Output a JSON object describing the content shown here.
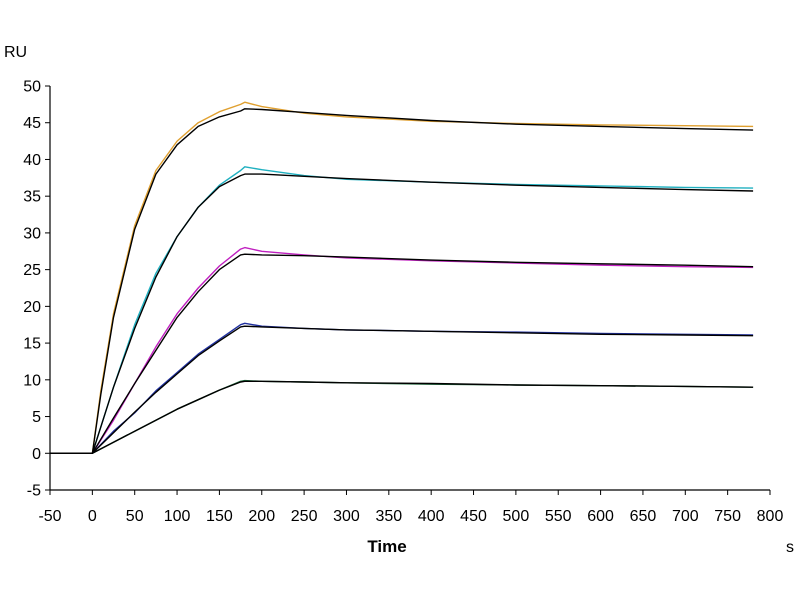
{
  "chart_data": {
    "type": "line",
    "title": "",
    "xlabel": "Time",
    "ylabel": "RU",
    "x_unit": "s",
    "xlim": [
      -50,
      800
    ],
    "ylim": [
      -5,
      50
    ],
    "x_ticks": [
      -50,
      0,
      50,
      100,
      150,
      200,
      250,
      300,
      350,
      400,
      450,
      500,
      550,
      600,
      650,
      700,
      750,
      800
    ],
    "y_ticks": [
      -5,
      0,
      5,
      10,
      15,
      20,
      25,
      30,
      35,
      40,
      45,
      50
    ],
    "grid": false,
    "legend": "none",
    "series": [
      {
        "color": "#E0A030",
        "fit_color": "#000000",
        "x": [
          -50,
          0,
          10,
          25,
          50,
          75,
          100,
          125,
          150,
          175,
          180,
          200,
          250,
          300,
          400,
          500,
          600,
          700,
          780
        ],
        "y": [
          0,
          0,
          8.5,
          19,
          31,
          38.5,
          42.5,
          45,
          46.5,
          47.5,
          47.8,
          47.2,
          46.3,
          45.8,
          45.2,
          44.9,
          44.7,
          44.6,
          44.5
        ],
        "fit": [
          0,
          0,
          8,
          18.5,
          30.5,
          38,
          42,
          44.5,
          45.8,
          46.6,
          46.9,
          46.8,
          46.4,
          46.0,
          45.3,
          44.8,
          44.5,
          44.2,
          44.0
        ]
      },
      {
        "color": "#20B0C0",
        "fit_color": "#000000",
        "x": [
          -50,
          0,
          25,
          50,
          75,
          100,
          125,
          150,
          175,
          180,
          200,
          250,
          300,
          400,
          500,
          600,
          700,
          780
        ],
        "y": [
          0,
          0,
          9,
          17.5,
          24.5,
          29.5,
          33.5,
          36.5,
          38.5,
          39.0,
          38.6,
          37.8,
          37.3,
          36.9,
          36.6,
          36.4,
          36.2,
          36.1
        ],
        "fit": [
          0,
          0,
          9,
          17,
          24,
          29.5,
          33.5,
          36.3,
          37.8,
          38.0,
          38.0,
          37.7,
          37.4,
          36.9,
          36.5,
          36.2,
          35.9,
          35.7
        ]
      },
      {
        "color": "#C020C0",
        "fit_color": "#000000",
        "x": [
          -50,
          0,
          25,
          50,
          75,
          100,
          125,
          150,
          175,
          180,
          200,
          250,
          300,
          400,
          500,
          600,
          700,
          780
        ],
        "y": [
          0,
          0,
          4.5,
          9.5,
          14.5,
          19,
          22.5,
          25.5,
          27.8,
          28.0,
          27.5,
          27.0,
          26.6,
          26.2,
          25.9,
          25.6,
          25.4,
          25.3
        ],
        "fit": [
          0,
          0,
          4.8,
          9.5,
          14,
          18.5,
          22,
          25,
          27,
          27.1,
          27.0,
          26.9,
          26.7,
          26.3,
          26.0,
          25.8,
          25.6,
          25.4
        ]
      },
      {
        "color": "#2030A0",
        "fit_color": "#000000",
        "x": [
          -50,
          0,
          25,
          50,
          75,
          100,
          125,
          150,
          175,
          180,
          200,
          250,
          300,
          400,
          500,
          600,
          700,
          780
        ],
        "y": [
          0,
          0,
          3,
          5.5,
          8.5,
          11,
          13.5,
          15.5,
          17.5,
          17.7,
          17.3,
          17.0,
          16.8,
          16.6,
          16.5,
          16.3,
          16.2,
          16.1
        ],
        "fit": [
          0,
          0,
          2.8,
          5.6,
          8.3,
          10.8,
          13.3,
          15.3,
          17.2,
          17.3,
          17.2,
          17.0,
          16.8,
          16.6,
          16.4,
          16.2,
          16.1,
          16.0
        ]
      },
      {
        "color": "#207040",
        "fit_color": "#000000",
        "x": [
          -50,
          0,
          25,
          50,
          75,
          100,
          125,
          150,
          175,
          180,
          200,
          250,
          300,
          400,
          500,
          600,
          700,
          780
        ],
        "y": [
          0,
          0,
          1.5,
          3,
          4.5,
          6,
          7.3,
          8.6,
          9.8,
          9.9,
          9.8,
          9.7,
          9.6,
          9.4,
          9.3,
          9.2,
          9.1,
          9.0
        ],
        "fit": [
          0,
          0,
          1.5,
          3,
          4.5,
          6,
          7.3,
          8.6,
          9.7,
          9.8,
          9.8,
          9.7,
          9.6,
          9.5,
          9.3,
          9.2,
          9.1,
          9.0
        ]
      }
    ]
  }
}
